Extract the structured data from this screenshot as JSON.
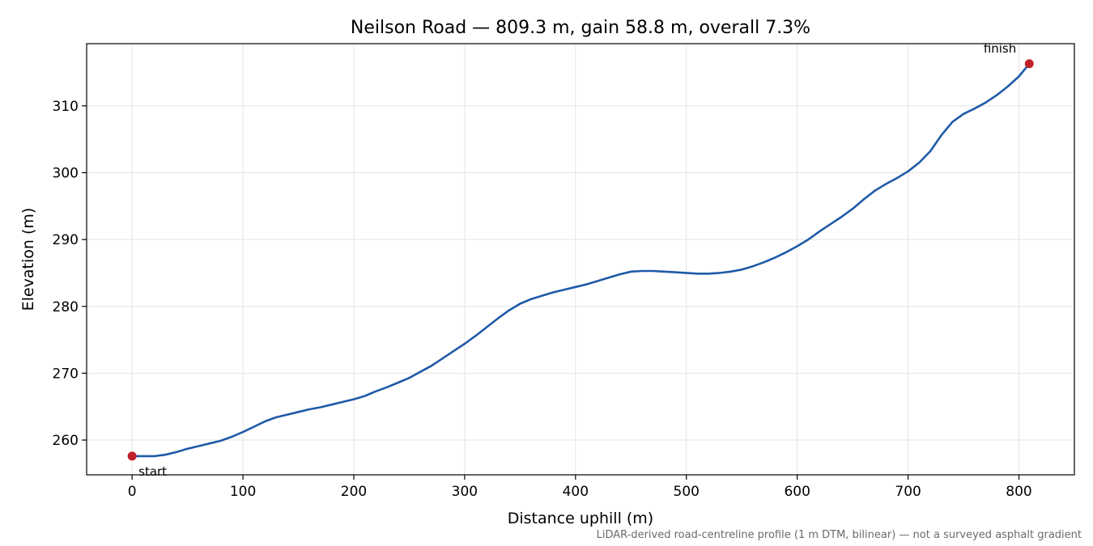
{
  "chart_data": {
    "type": "line",
    "title": "Neilson Road — 809.3 m, gain 58.8 m, overall 7.3%",
    "xlabel": "Distance uphill (m)",
    "ylabel": "Elevation (m)",
    "xlim": [
      -41,
      850
    ],
    "ylim": [
      254.8,
      319.3
    ],
    "xticks": [
      0,
      100,
      200,
      300,
      400,
      500,
      600,
      700,
      800
    ],
    "yticks": [
      260,
      270,
      280,
      290,
      300,
      310
    ],
    "grid": true,
    "footnote": "LiDAR-derived road-centreline profile (1 m DTM, bilinear) — not a surveyed asphalt gradient",
    "colors": {
      "line": "#1f5aa8",
      "marker": "#c0202a",
      "grid": "#e3e3e3",
      "footnote": "#6b6b6b"
    },
    "series": [
      {
        "x": [
          0,
          10,
          20,
          30,
          40,
          50,
          60,
          70,
          80,
          90,
          100,
          110,
          120,
          130,
          140,
          150,
          160,
          170,
          180,
          190,
          200,
          210,
          220,
          230,
          240,
          250,
          260,
          270,
          280,
          290,
          300,
          310,
          320,
          330,
          340,
          350,
          360,
          370,
          380,
          390,
          400,
          410,
          420,
          430,
          440,
          450,
          460,
          470,
          480,
          490,
          500,
          510,
          520,
          530,
          540,
          550,
          560,
          570,
          580,
          590,
          600,
          610,
          620,
          630,
          640,
          650,
          660,
          670,
          680,
          690,
          700,
          710,
          720,
          730,
          740,
          750,
          760,
          770,
          780,
          790,
          800,
          809.3
        ],
        "y": [
          257.6,
          257.6,
          257.6,
          257.8,
          258.2,
          258.7,
          259.1,
          259.5,
          259.9,
          260.5,
          261.2,
          262.0,
          262.8,
          263.4,
          263.8,
          264.2,
          264.6,
          264.9,
          265.3,
          265.7,
          266.1,
          266.6,
          267.3,
          267.9,
          268.6,
          269.3,
          270.2,
          271.1,
          272.2,
          273.3,
          274.4,
          275.6,
          276.9,
          278.2,
          279.4,
          280.4,
          281.1,
          281.6,
          282.1,
          282.5,
          282.9,
          283.3,
          283.8,
          284.3,
          284.8,
          285.2,
          285.3,
          285.3,
          285.2,
          285.1,
          285.0,
          284.9,
          284.9,
          285.0,
          285.2,
          285.5,
          286.0,
          286.6,
          287.3,
          288.1,
          289.0,
          290.0,
          291.2,
          292.3,
          293.4,
          294.6,
          296.0,
          297.3,
          298.3,
          299.2,
          300.2,
          301.5,
          303.2,
          305.6,
          307.6,
          308.8,
          309.6,
          310.5,
          311.6,
          312.9,
          314.4,
          316.3
        ]
      }
    ],
    "annotations": [
      {
        "label": "start",
        "x": 0,
        "y": 257.6
      },
      {
        "label": "finish",
        "x": 809.3,
        "y": 316.3
      }
    ]
  }
}
